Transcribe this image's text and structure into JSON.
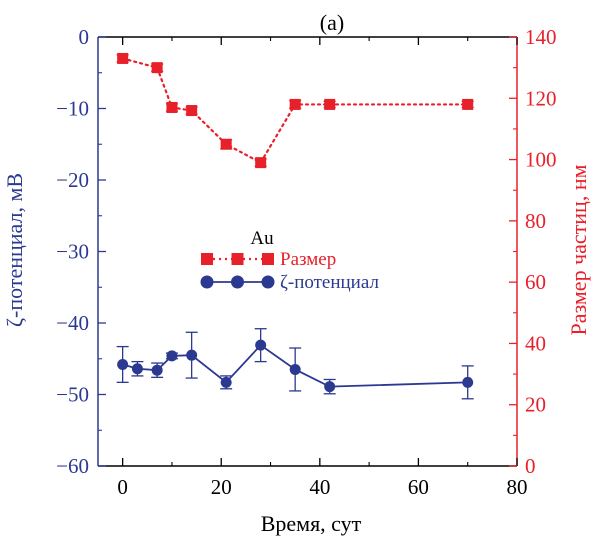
{
  "chart_data": {
    "type": "line",
    "panel_label": "(a)",
    "x_axis": {
      "label": "Время, сут",
      "range": [
        -5,
        80
      ],
      "ticks": [
        0,
        20,
        40,
        60,
        80
      ],
      "tick_labels": [
        "0",
        "20",
        "40",
        "60",
        "80"
      ]
    },
    "y_left": {
      "label": "ζ-потенциал, мВ",
      "range": [
        -60,
        0
      ],
      "ticks": [
        0,
        -10,
        -20,
        -30,
        -40,
        -50,
        -60
      ],
      "tick_labels": [
        "0",
        "−10",
        "−20",
        "−30",
        "−40",
        "−50",
        "−60"
      ],
      "color": "#2b3990"
    },
    "y_right": {
      "label": "Размер частиц, нм",
      "range": [
        0,
        140
      ],
      "ticks": [
        0,
        20,
        40,
        60,
        80,
        100,
        120,
        140
      ],
      "tick_labels": [
        "0",
        "20",
        "40",
        "60",
        "80",
        "100",
        "120",
        "140"
      ],
      "color": "#e8202a"
    },
    "legend": {
      "title": "Au",
      "placement": "center"
    },
    "series": [
      {
        "name": "Размер",
        "axis": "right",
        "color": "#e8202a",
        "marker": "square",
        "line": "dotted",
        "x": [
          0,
          7,
          10,
          14,
          21,
          28,
          35,
          42,
          70
        ],
        "y": [
          133,
          130,
          117,
          116,
          105,
          99,
          118,
          118,
          118
        ],
        "err": [
          1.2,
          1.2,
          1.2,
          1.2,
          1.5,
          1.2,
          1.2,
          1.0,
          1.0
        ]
      },
      {
        "name": "ζ-потенциал",
        "axis": "left",
        "color": "#2b3990",
        "marker": "circle",
        "line": "solid",
        "x": [
          0,
          3,
          7,
          10,
          14,
          21,
          28,
          35,
          42,
          70
        ],
        "y": [
          -45.8,
          -46.4,
          -46.6,
          -44.6,
          -44.5,
          -48.3,
          -43.1,
          -46.5,
          -48.9,
          -48.3
        ],
        "err": [
          2.5,
          1.0,
          1.0,
          0.4,
          3.2,
          0.9,
          2.3,
          3.0,
          1.0,
          2.3
        ]
      }
    ]
  }
}
